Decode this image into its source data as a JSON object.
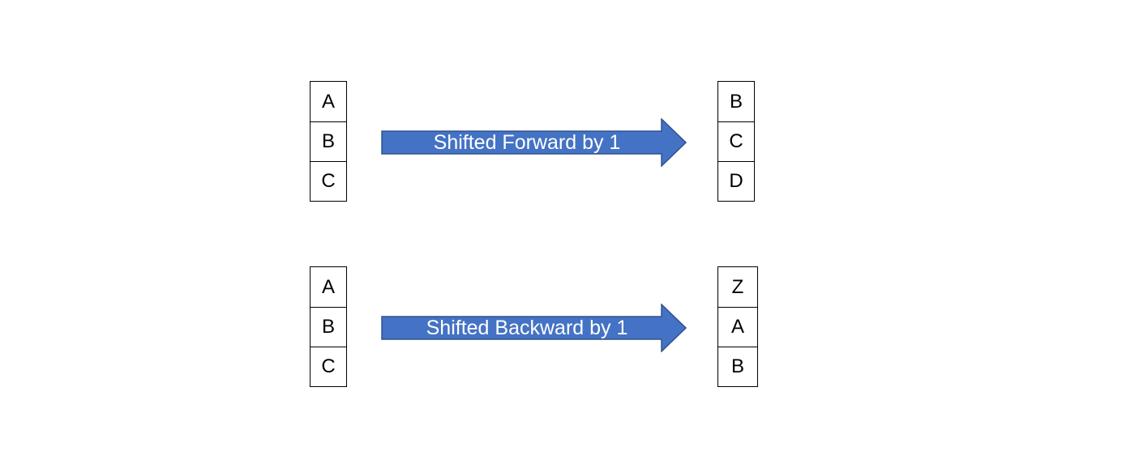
{
  "colors": {
    "arrow_fill": "#4472C4",
    "arrow_stroke": "#2F528F",
    "arrow_text": "#ffffff",
    "cell_border": "#000000"
  },
  "forward": {
    "left_cells": [
      "A",
      "B",
      "C"
    ],
    "arrow_label": "Shifted Forward by 1",
    "right_cells": [
      "B",
      "C",
      "D"
    ]
  },
  "backward": {
    "left_cells": [
      "A",
      "B",
      "C"
    ],
    "arrow_label": "Shifted Backward by 1",
    "right_cells": [
      "Z",
      "A",
      "B"
    ]
  }
}
